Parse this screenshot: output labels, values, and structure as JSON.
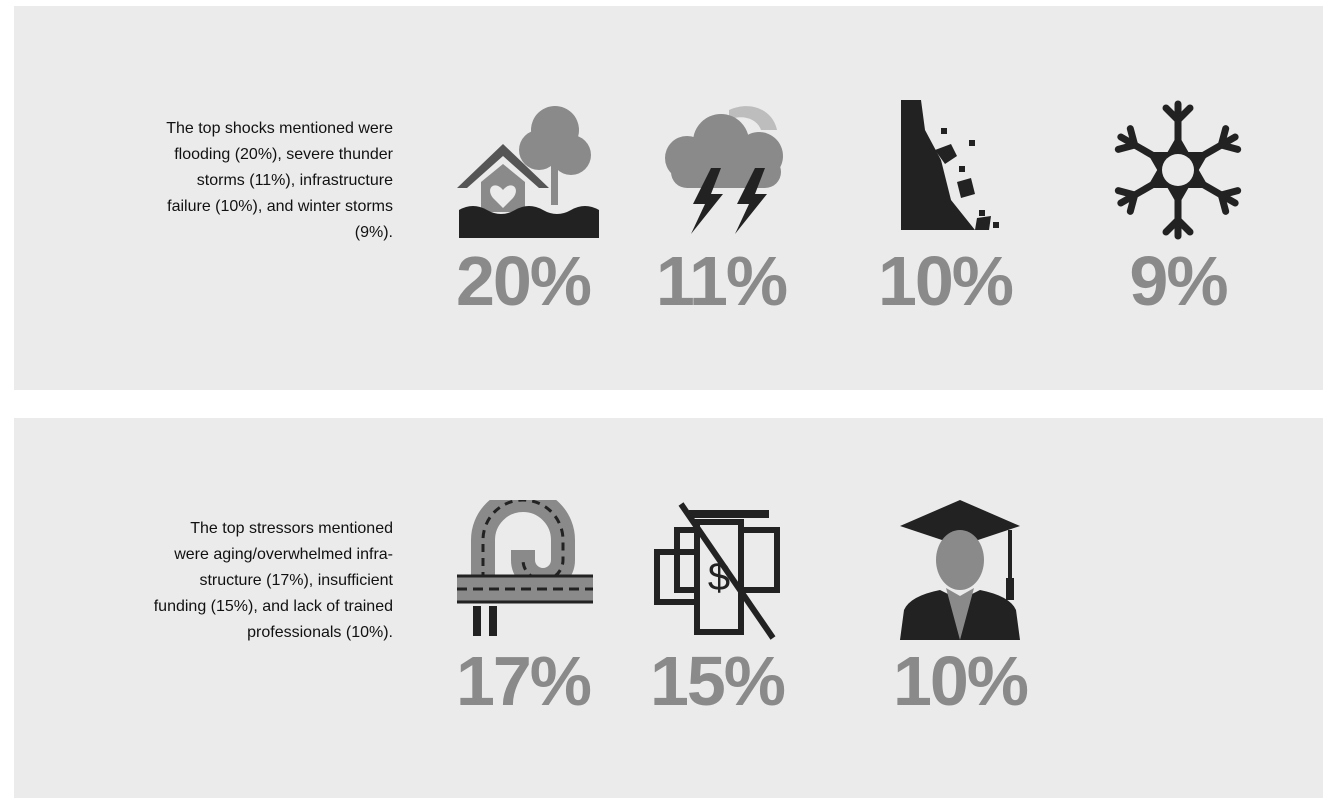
{
  "panels": [
    {
      "text_lines": [
        "The top shocks mentioned were",
        "flooding (20%), severe thunder",
        "storms (11%), infrastructure",
        "failure (10%), and winter storms",
        "(9%)."
      ],
      "items": [
        {
          "label": "20%"
        },
        {
          "label": "11%"
        },
        {
          "label": "10%"
        },
        {
          "label": "9%"
        }
      ]
    },
    {
      "text_lines": [
        "The top stressors mentioned",
        "were aging/overwhelmed infra-",
        "structure (17%), insufficient",
        "funding (15%), and lack of trained",
        "professionals (10%)."
      ],
      "items": [
        {
          "label": "17%"
        },
        {
          "label": "15%"
        },
        {
          "label": "10%"
        }
      ]
    }
  ]
}
